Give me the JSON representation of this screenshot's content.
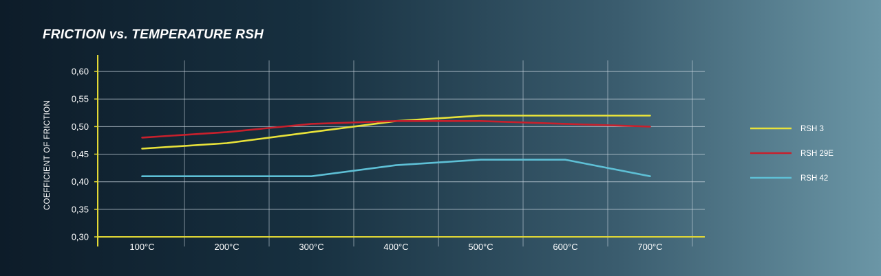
{
  "chart_data": {
    "type": "line",
    "title": "FRICTION vs. TEMPERATURE RSH",
    "xlabel": "",
    "ylabel": "COEFFICIENT OF FRICTION",
    "categories": [
      "100°C",
      "200°C",
      "300°C",
      "400°C",
      "500°C",
      "600°C",
      "700°C"
    ],
    "yticks": [
      "0,30",
      "0,35",
      "0,40",
      "0,45",
      "0,50",
      "0,55",
      "0,60"
    ],
    "ylim": [
      0.3,
      0.62
    ],
    "grid": true,
    "legend_position": "right",
    "series": [
      {
        "name": "RSH 3",
        "color": "#e8e23a",
        "values": [
          0.46,
          0.47,
          0.49,
          0.51,
          0.52,
          0.52,
          0.52
        ]
      },
      {
        "name": "RSH 29E",
        "color": "#c8202c",
        "values": [
          0.48,
          0.49,
          0.505,
          0.51,
          0.51,
          0.505,
          0.5
        ]
      },
      {
        "name": "RSH 42",
        "color": "#5ec0d6",
        "values": [
          0.41,
          0.41,
          0.41,
          0.43,
          0.44,
          0.44,
          0.41
        ]
      }
    ],
    "axis_color": "#e3d935",
    "grid_color": "#c9d6df"
  }
}
